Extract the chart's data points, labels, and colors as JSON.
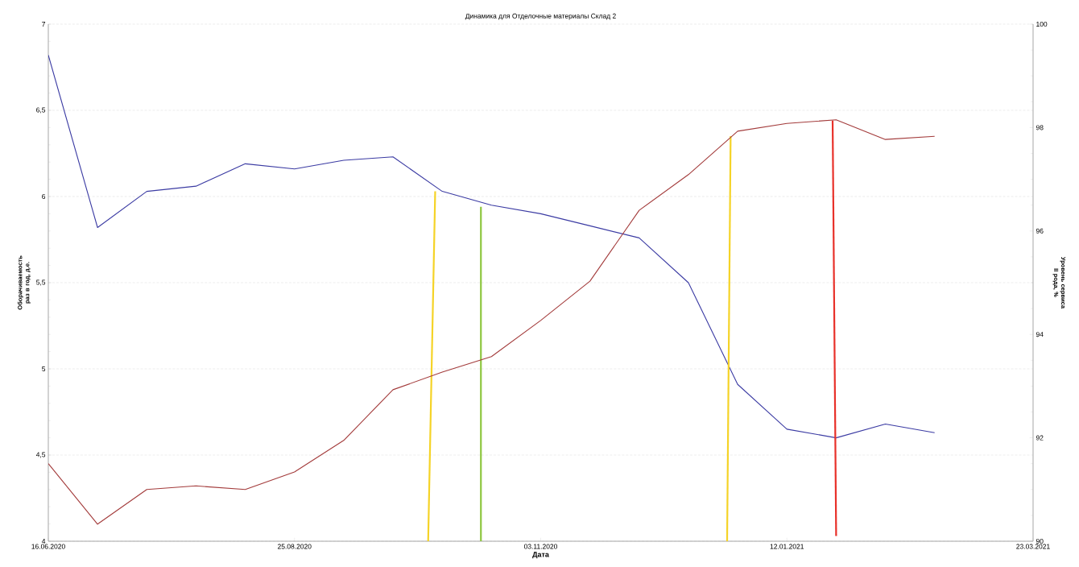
{
  "chart_data": {
    "type": "line",
    "title": "Динамика для Отделочные материалы Склад 2",
    "xlabel": "Дата",
    "ylabel": "Оборачиваемость раз в год, д.е.",
    "y2label": "Уровень сервиса II рода, %",
    "x": [
      "2020-06-16",
      "2020-06-30",
      "2020-07-14",
      "2020-07-28",
      "2020-08-11",
      "2020-08-25",
      "2020-09-08",
      "2020-09-22",
      "2020-10-06",
      "2020-10-20",
      "2020-11-03",
      "2020-11-17",
      "2020-12-01",
      "2020-12-15",
      "2020-12-29",
      "2021-01-12",
      "2021-01-26",
      "2021-02-09",
      "2021-02-23"
    ],
    "xlim": [
      "2020-06-16",
      "2021-03-23"
    ],
    "xticks": [
      {
        "value": "2020-06-16",
        "label": "16.06.2020"
      },
      {
        "value": "2020-08-25",
        "label": "25.08.2020"
      },
      {
        "value": "2020-11-03",
        "label": "03.11.2020"
      },
      {
        "value": "2021-01-12",
        "label": "12.01.2021"
      },
      {
        "value": "2021-03-23",
        "label": "23.03.2021"
      }
    ],
    "ylim": [
      4,
      7
    ],
    "yticks": [
      4,
      {
        "value": 4.5,
        "label": "4,5"
      },
      5,
      {
        "value": 5.5,
        "label": "5,5"
      },
      6,
      {
        "value": 6.5,
        "label": "6,5"
      },
      7
    ],
    "y2lim": [
      90,
      100
    ],
    "y2ticks": [
      90,
      92,
      94,
      96,
      98,
      100
    ],
    "grid": "y",
    "series": [
      {
        "color": "#3b3ba3",
        "values": [
          6.82,
          5.82,
          6.03,
          6.06,
          6.19,
          6.16,
          6.21,
          6.23,
          6.03,
          5.95,
          5.9,
          5.83,
          5.76,
          5.5,
          4.91,
          4.65,
          4.6,
          4.68,
          4.63
        ]
      },
      {
        "color": "#a33b3b",
        "axis": "y2",
        "values": [
          91.5,
          90.33,
          91.0,
          91.07,
          91.0,
          91.34,
          91.95,
          92.93,
          93.27,
          93.57,
          94.27,
          95.03,
          96.4,
          97.09,
          97.93,
          98.08,
          98.15,
          97.77,
          97.83
        ]
      },
      {
        "color": "#f5d327",
        "x": [
          "2020-10-02",
          "2020-10-04"
        ],
        "values": [
          4,
          6.03
        ]
      },
      {
        "color": "#8dc63f",
        "x": [
          "2020-10-17",
          "2020-10-17"
        ],
        "values": [
          4,
          5.94
        ]
      },
      {
        "color": "#f5d327",
        "x": [
          "2020-12-26",
          "2020-12-27"
        ],
        "values": [
          4,
          6.35
        ]
      },
      {
        "color": "#e8312a",
        "x": [
          "2021-01-26",
          "2021-01-25"
        ],
        "values": [
          4.03,
          6.44
        ]
      }
    ]
  }
}
